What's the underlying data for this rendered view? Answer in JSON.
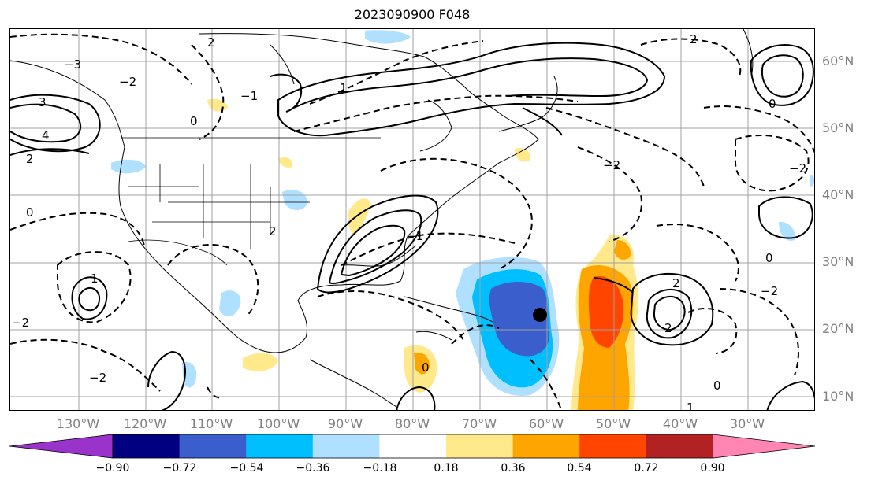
{
  "title": "2023090900 F048",
  "lat_labels": [
    "60°N",
    "50°N",
    "40°N",
    "30°N",
    "20°N",
    "10°N"
  ],
  "lon_labels": [
    "130°W",
    "120°W",
    "110°W",
    "100°W",
    "90°W",
    "80°W",
    "70°W",
    "60°W",
    "50°W",
    "40°W",
    "30°W"
  ],
  "colorbar": {
    "ticks": [
      "−0.90",
      "−0.72",
      "−0.54",
      "−0.36",
      "−0.18",
      "0.18",
      "0.36",
      "0.54",
      "0.72",
      "0.90"
    ],
    "colors": [
      "#9933cc",
      "#000080",
      "#3a5fcd",
      "#00bfff",
      "#b0e0ff",
      "#ffffff",
      "#ffe98a",
      "#ffa500",
      "#ff4500",
      "#b22222",
      "#ff85b3"
    ]
  },
  "contour_labels": [
    "2",
    "−2",
    "0",
    "−1",
    "1",
    "4",
    "3",
    "−3",
    "2",
    "0",
    "−2",
    "1",
    "2",
    "−1",
    "0",
    "2",
    "−2",
    "2",
    "−2",
    "0",
    "2",
    "0",
    "−2",
    "0",
    "1",
    "−2"
  ],
  "colors": {
    "contour": "#000000",
    "grid": "#a0a0a0",
    "coast": "#000000",
    "marker": "#000000",
    "axis_label": "#808080"
  }
}
